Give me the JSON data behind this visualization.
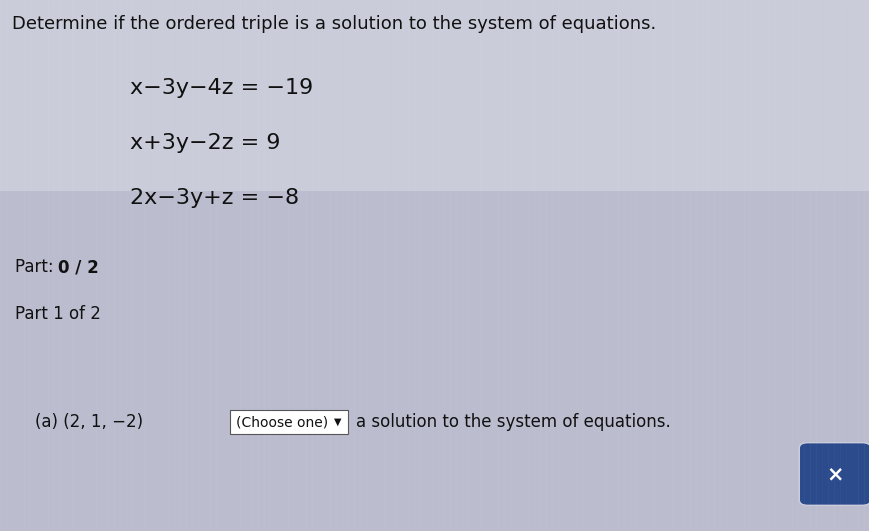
{
  "title": "Determine if the ordered triple is a solution to the system of equations.",
  "eq1": "x−3y−4z = −19",
  "eq2": "x+3y−2z = 9",
  "eq3": "2x−3y+z = −8",
  "part_label_prefix": "Part: ",
  "part_label_bold": "0 / 2",
  "part1_label": "Part 1 of 2",
  "part_a_text": "(a) (2, 1, −2)",
  "dropdown_text": "(Choose one)",
  "suffix_text": "a solution to the system of equations.",
  "x_button": "×",
  "bg_color": "#caccda",
  "part_bar_color": "#b2b4c6",
  "part1_bar_color": "#b0b2c4",
  "bottom_bg_color": "#bbbdcf",
  "x_button_color": "#2b4b8c",
  "title_fontsize": 13,
  "eq_fontsize": 16,
  "part_fontsize": 12,
  "body_fontsize": 12,
  "stripe_color": "#d4d6e4",
  "stripe_alpha": 0.5
}
